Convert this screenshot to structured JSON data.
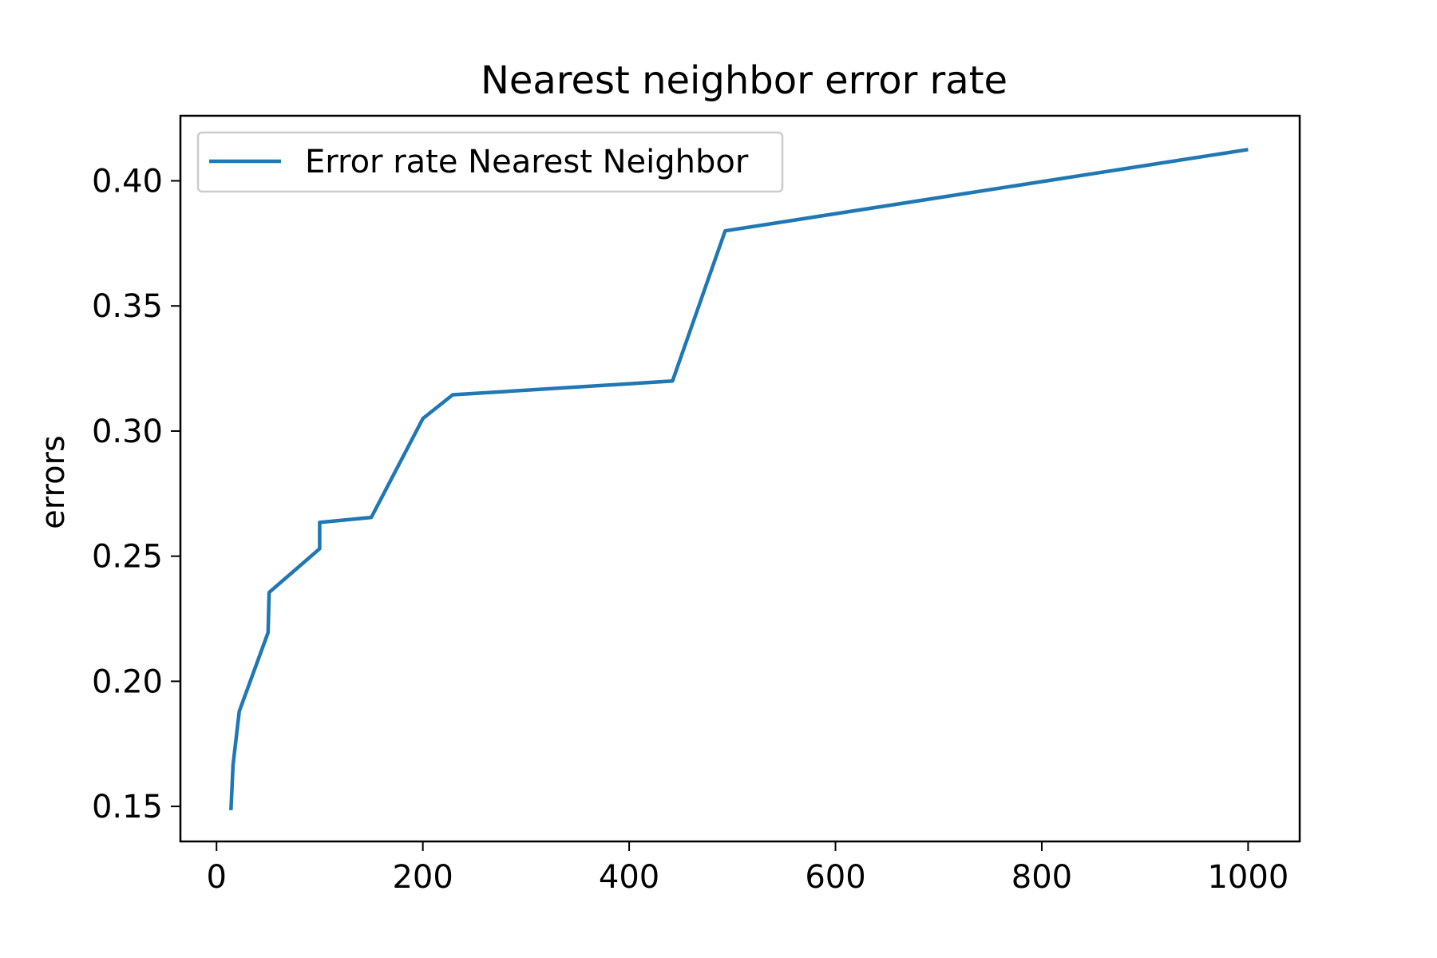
{
  "chart_data": {
    "type": "line",
    "title": "Nearest neighbor error rate",
    "xlabel": "",
    "ylabel": "errors",
    "xlim": [
      -35,
      1050
    ],
    "ylim": [
      0.136,
      0.426
    ],
    "xticks": [
      0,
      200,
      400,
      600,
      800,
      1000
    ],
    "yticks": [
      0.15,
      0.2,
      0.25,
      0.3,
      0.35,
      0.4
    ],
    "xtick_labels": [
      "0",
      "200",
      "400",
      "600",
      "800",
      "1000"
    ],
    "ytick_labels": [
      "0.15",
      "0.20",
      "0.25",
      "0.30",
      "0.35",
      "0.40"
    ],
    "grid": false,
    "legend_position": "upper-left",
    "series": [
      {
        "name": "Error rate Nearest Neighbor",
        "color": "#1f77b4",
        "x": [
          14,
          16,
          22,
          50,
          51,
          100,
          100,
          150,
          200,
          229,
          442,
          493,
          1000
        ],
        "y": [
          0.1485,
          0.1665,
          0.188,
          0.2195,
          0.2355,
          0.253,
          0.2635,
          0.2655,
          0.305,
          0.3145,
          0.32,
          0.38,
          0.4125
        ]
      }
    ]
  }
}
